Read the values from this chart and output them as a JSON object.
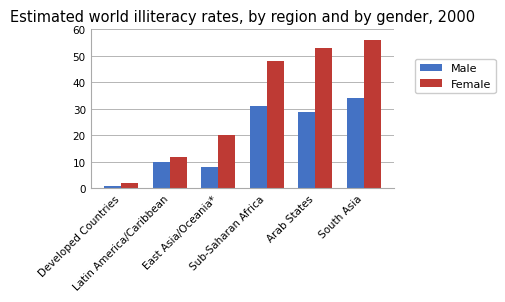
{
  "title": "Estimated world illiteracy rates, by region and by gender, 2000",
  "categories": [
    "Developed Countries",
    "Latin America/Caribbean",
    "East Asia/Oceania*",
    "Sub-Saharan Africa",
    "Arab States",
    "South Asia"
  ],
  "male_values": [
    1,
    10,
    8,
    31,
    29,
    34
  ],
  "female_values": [
    2,
    12,
    20,
    48,
    53,
    56
  ],
  "male_color": "#4472C4",
  "female_color": "#BE3A34",
  "ylim": [
    0,
    60
  ],
  "yticks": [
    0,
    10,
    20,
    30,
    40,
    50,
    60
  ],
  "legend_male": "Male",
  "legend_female": "Female",
  "bar_width": 0.35,
  "title_fontsize": 10.5,
  "tick_fontsize": 7.5,
  "legend_fontsize": 8
}
